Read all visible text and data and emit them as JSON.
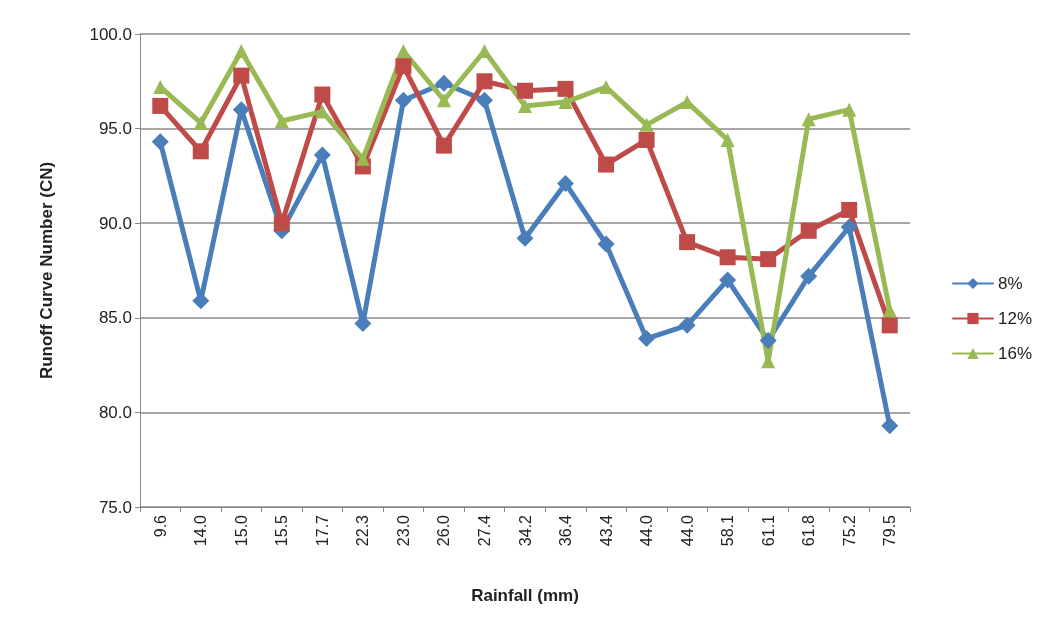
{
  "chart_data": {
    "type": "line",
    "xlabel": "Rainfall (mm)",
    "ylabel": "Runoff Curve Number (CN)",
    "categories": [
      "9.6",
      "14.0",
      "15.0",
      "15.5",
      "17.7",
      "22.3",
      "23.0",
      "26.0",
      "27.4",
      "34.2",
      "36.4",
      "43.4",
      "44.0",
      "44.0",
      "58.1",
      "61.1",
      "61.8",
      "75.2",
      "79.5"
    ],
    "series": [
      {
        "name": "8%",
        "color": "#4a7ebb",
        "marker": "diamond",
        "values": [
          94.3,
          85.9,
          96.0,
          89.6,
          93.6,
          84.7,
          96.5,
          97.4,
          96.5,
          89.2,
          92.1,
          88.9,
          83.9,
          84.6,
          87.0,
          83.8,
          87.2,
          89.8,
          79.3
        ]
      },
      {
        "name": "12%",
        "color": "#be4b48",
        "marker": "square",
        "values": [
          96.2,
          93.8,
          97.8,
          90.0,
          96.8,
          93.0,
          98.3,
          94.1,
          97.5,
          97.0,
          97.1,
          93.1,
          94.4,
          89.0,
          88.2,
          88.1,
          89.6,
          90.7,
          84.6
        ]
      },
      {
        "name": "16%",
        "color": "#98b954",
        "marker": "triangle",
        "values": [
          97.2,
          95.3,
          99.1,
          95.4,
          95.9,
          93.4,
          99.1,
          96.5,
          99.1,
          96.2,
          96.4,
          97.2,
          95.2,
          96.4,
          94.4,
          82.7,
          95.5,
          96.0,
          85.4
        ]
      }
    ],
    "ylim": [
      75,
      100
    ],
    "yticks": [
      {
        "value": 75,
        "label": "75.0"
      },
      {
        "value": 80,
        "label": "80.0"
      },
      {
        "value": 85,
        "label": "85.0"
      },
      {
        "value": 90,
        "label": "90.0"
      },
      {
        "value": 95,
        "label": "95.0"
      },
      {
        "value": 100,
        "label": "100.0"
      }
    ],
    "grid": "y",
    "legend": "right",
    "line_style": "solid"
  }
}
